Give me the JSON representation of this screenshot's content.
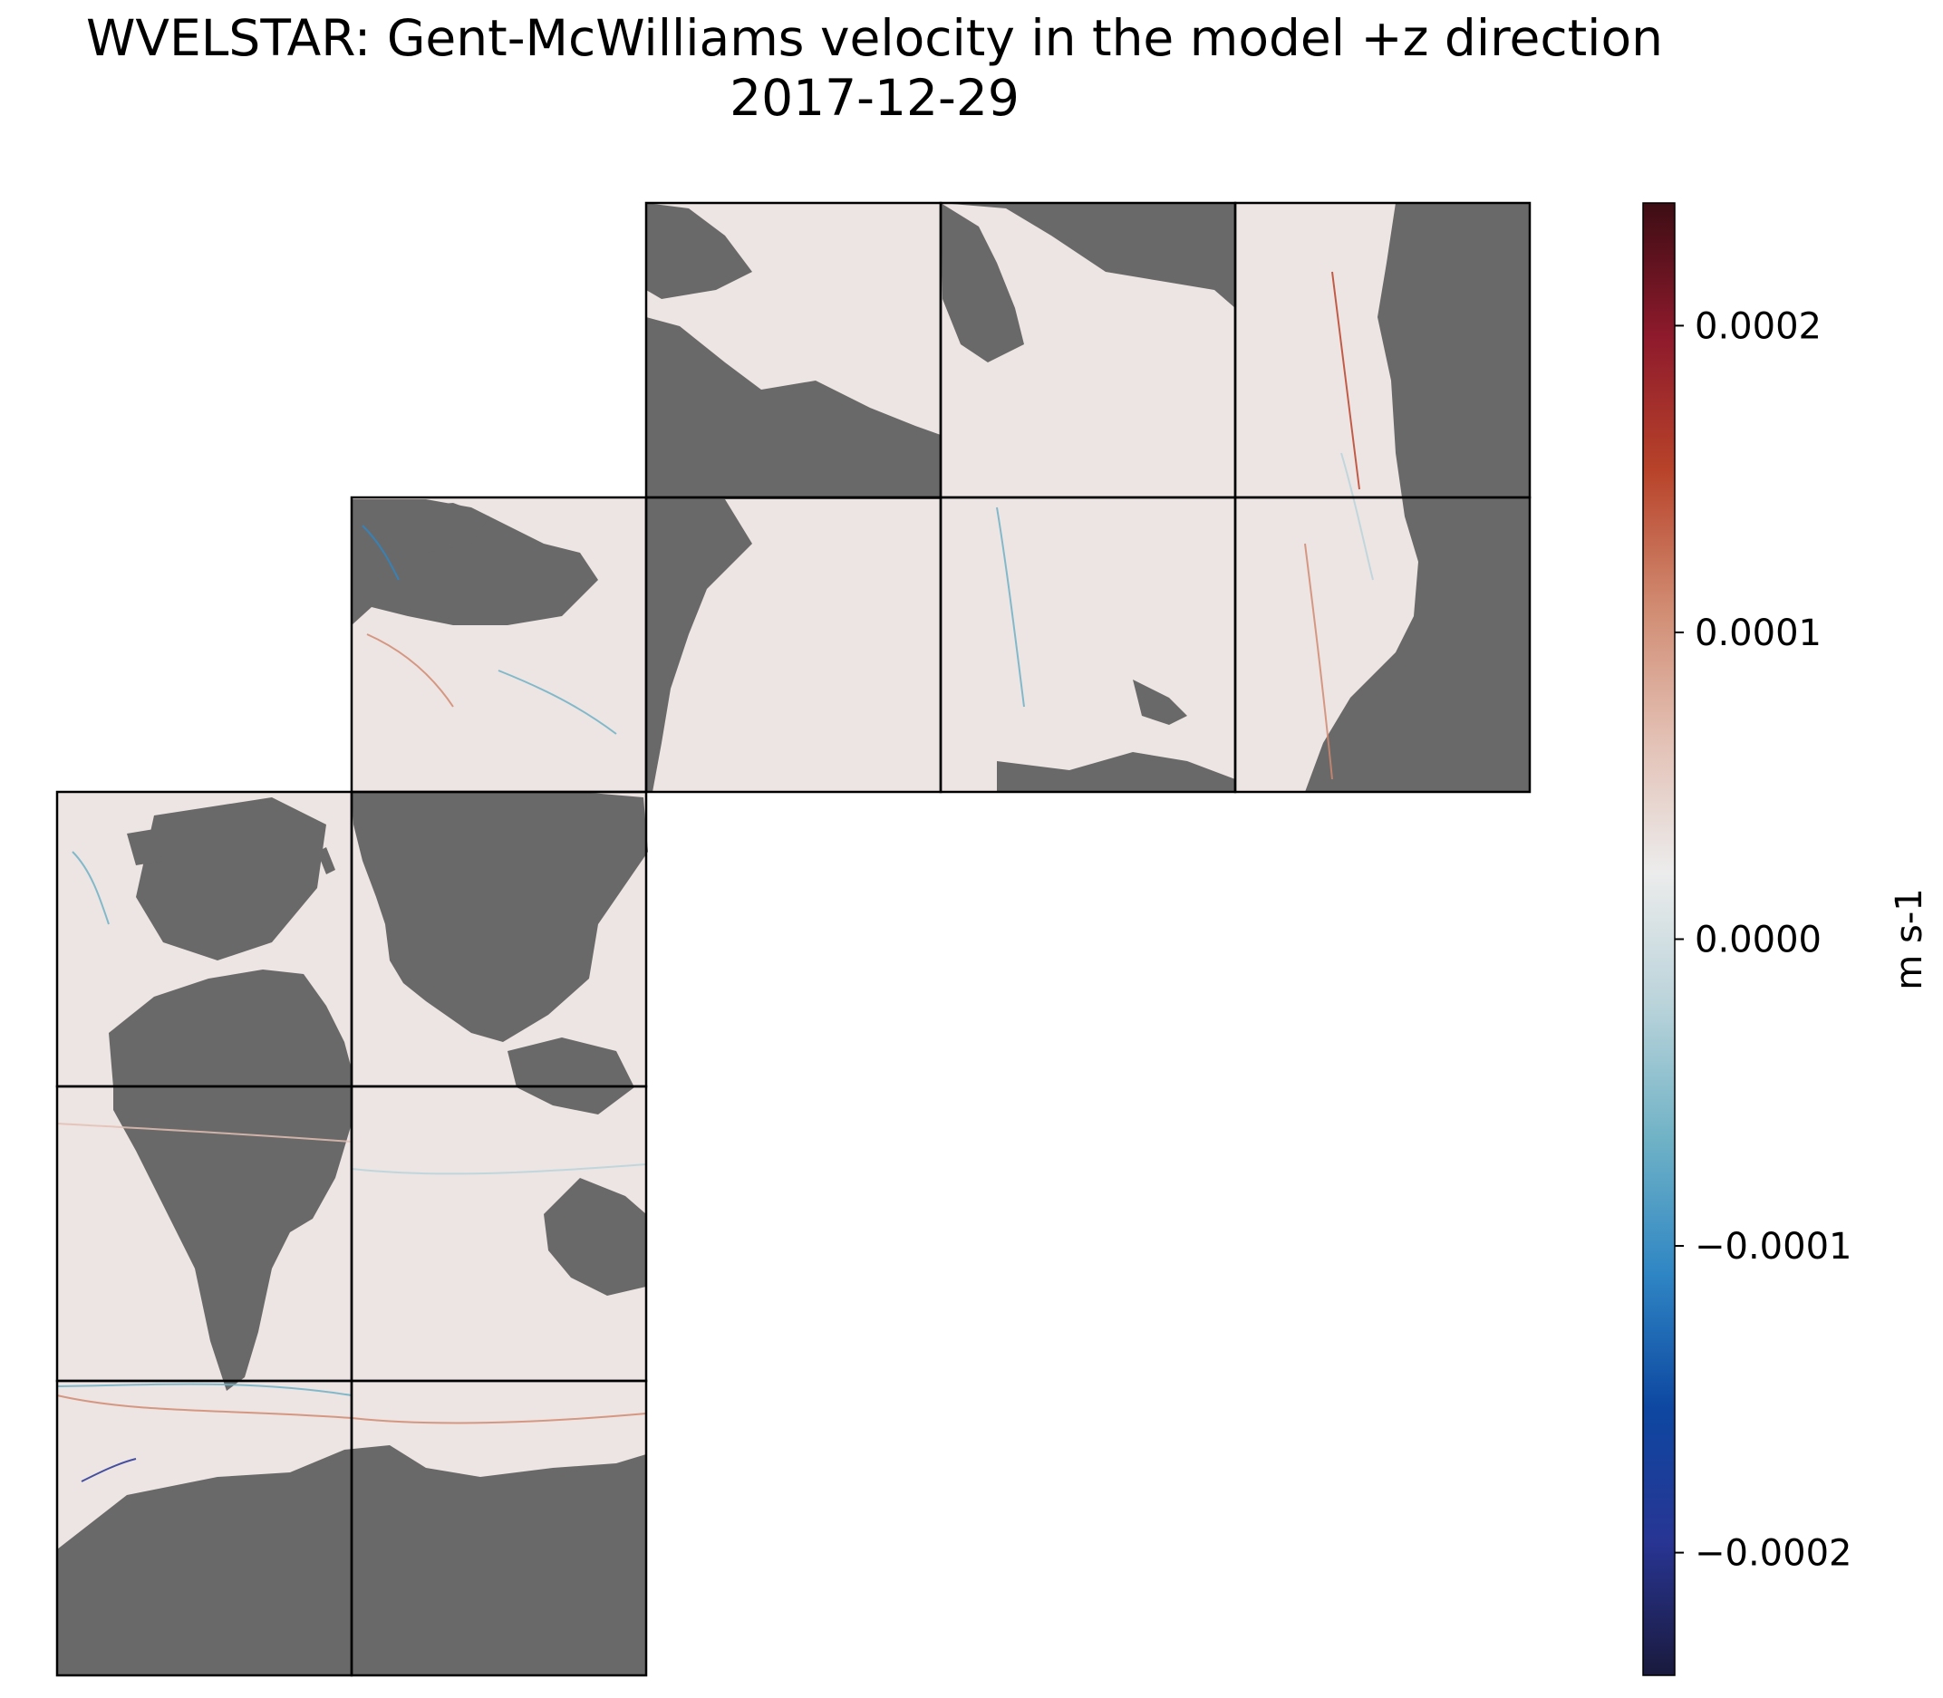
{
  "title": "WVELSTAR: Gent-McWilliams velocity in the model +z direction",
  "subtitle": "2017-12-29",
  "colors": {
    "land": "#696969",
    "ocean": "#ede5e3",
    "tile_border": "#000000",
    "colormap": [
      "#1a1a3d",
      "#283593",
      "#0d47a1",
      "#2f86c4",
      "#6fb2c6",
      "#b9d3da",
      "#ececec",
      "#e3c0b4",
      "#d08a70",
      "#b8432a",
      "#8e1a2c",
      "#3d0d14"
    ]
  },
  "chart_data": {
    "type": "heatmap",
    "variable": "WVELSTAR",
    "title": "WVELSTAR: Gent-McWilliams velocity in the model +z direction",
    "subtitle": "2017-12-29",
    "projection": "LLC tiles (13 faces)",
    "colorbar": {
      "label": "m s-1",
      "vmin": -0.00024,
      "vmax": 0.00024,
      "ticks": [
        0.0002,
        0.0001,
        0.0,
        -0.0001,
        -0.0002
      ],
      "tick_labels": [
        "0.0002",
        "0.0001",
        "0.0000",
        "−0.0001",
        "−0.0002"
      ],
      "colormap": "balance"
    },
    "tiles": [
      {
        "col": 0,
        "row": 2
      },
      {
        "col": 1,
        "row": 2
      },
      {
        "col": 0,
        "row": 3
      },
      {
        "col": 1,
        "row": 3
      },
      {
        "col": 0,
        "row": 4
      },
      {
        "col": 1,
        "row": 4
      },
      {
        "col": 1,
        "row": 1
      },
      {
        "col": 2,
        "row": 1
      },
      {
        "col": 3,
        "row": 1
      },
      {
        "col": 4,
        "row": 1
      },
      {
        "col": 2,
        "row": 0
      },
      {
        "col": 3,
        "row": 0
      },
      {
        "col": 4,
        "row": 0
      }
    ]
  }
}
